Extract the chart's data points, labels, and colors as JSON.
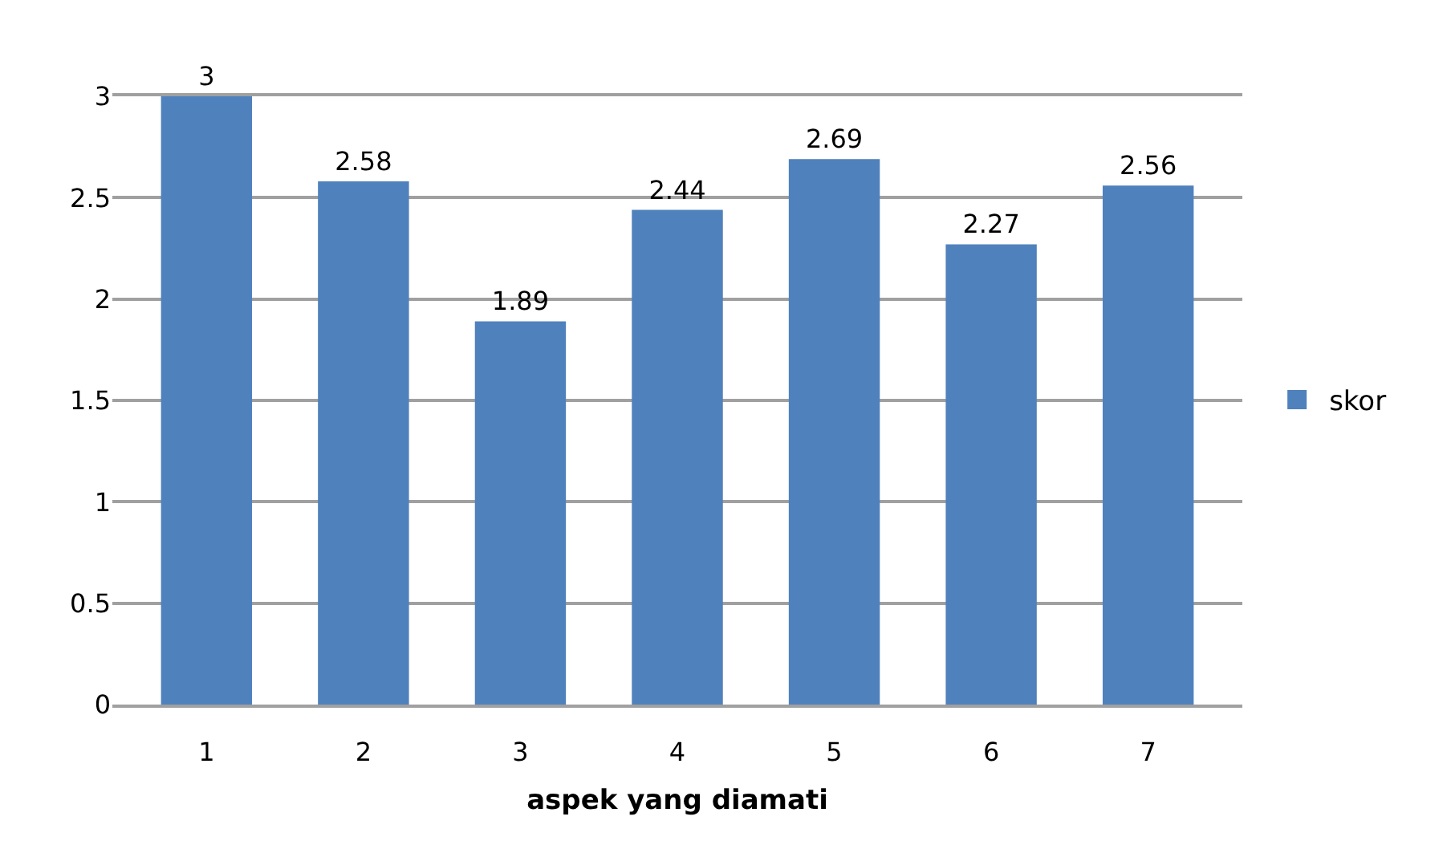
{
  "chart_data": {
    "type": "bar",
    "xlabel": "aspek yang diamati",
    "categories": [
      "1",
      "2",
      "3",
      "4",
      "5",
      "6",
      "7"
    ],
    "series": [
      {
        "name": "skor",
        "color": "#4f81bd",
        "values": [
          3,
          2.58,
          1.89,
          2.44,
          2.69,
          2.27,
          2.56
        ]
      }
    ],
    "ylim": [
      0,
      3
    ],
    "yticks": [
      0,
      0.5,
      1,
      1.5,
      2,
      2.5,
      3
    ],
    "grid": "y",
    "legend": "right",
    "data_labels": true
  }
}
